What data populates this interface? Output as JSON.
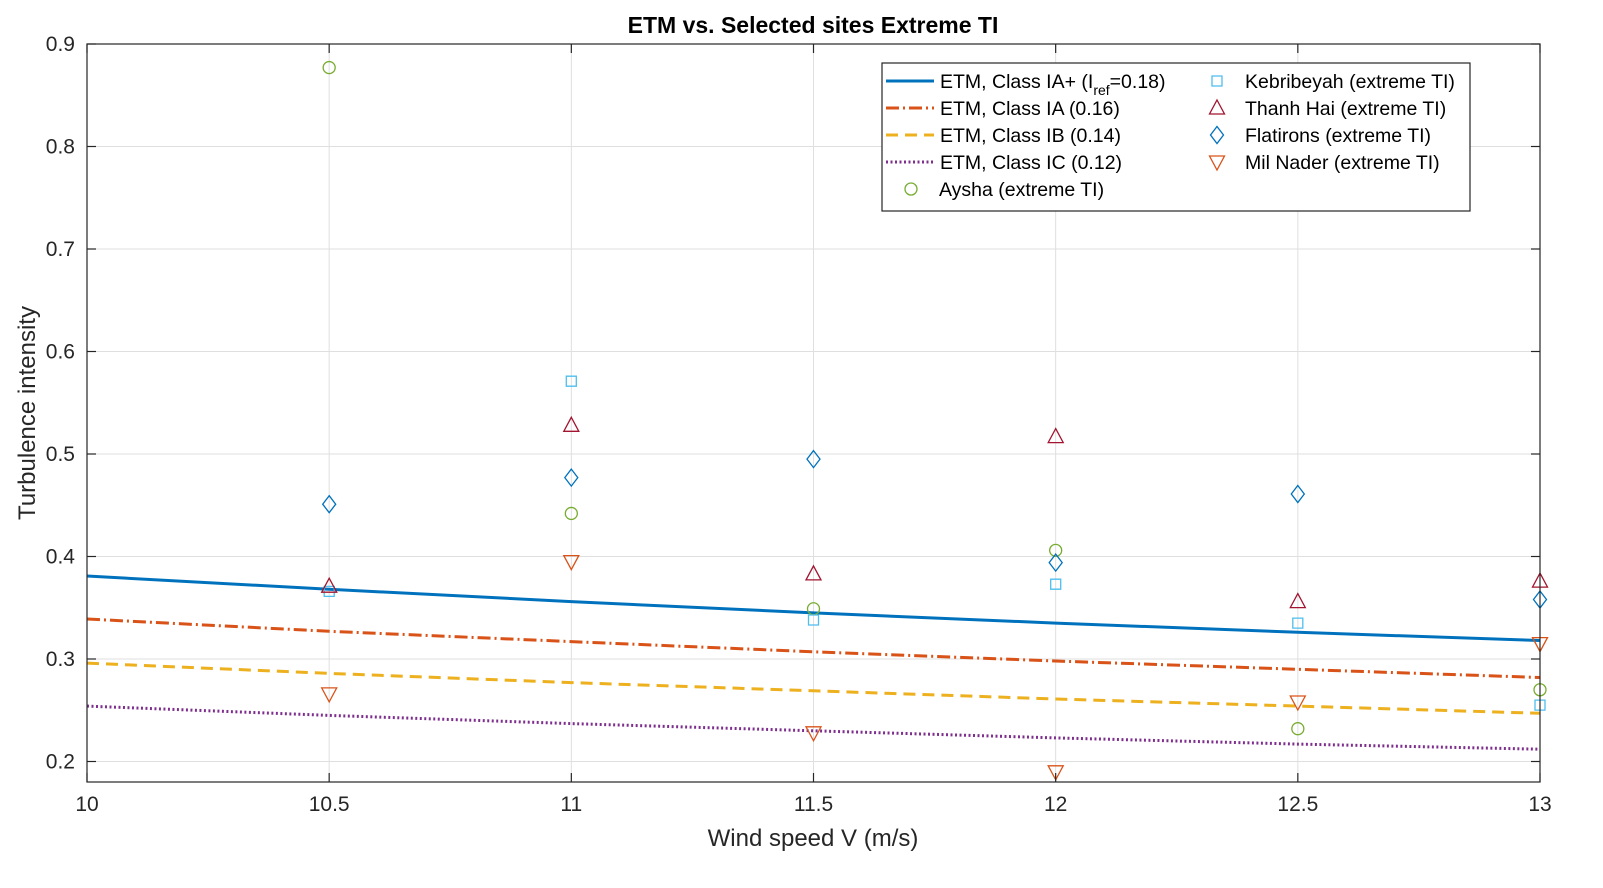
{
  "chart_data": {
    "type": "scatter",
    "title": "ETM vs. Selected sites Extreme TI",
    "xlabel": "Wind speed V (m/s)",
    "ylabel": "Turbulence intensity",
    "xlim": [
      10,
      13
    ],
    "ylim": [
      0.18,
      0.9
    ],
    "xticks": [
      "10",
      "10.5",
      "11",
      "11.5",
      "12",
      "12.5",
      "13"
    ],
    "yticks": [
      "0.2",
      "0.3",
      "0.4",
      "0.5",
      "0.6",
      "0.7",
      "0.8",
      "0.9"
    ],
    "grid": true,
    "legend_position": "top-right",
    "lines": [
      {
        "name": "ETM, Class IA+ (I",
        "name_sub": "ref",
        "name_tail": "=0.18)",
        "color": "#0072BD",
        "style": "solid",
        "x": [
          10,
          10.5,
          11,
          11.5,
          12,
          12.5,
          13
        ],
        "y": [
          0.381,
          0.368,
          0.356,
          0.345,
          0.335,
          0.326,
          0.318
        ]
      },
      {
        "name": "ETM, Class IA (0.16)",
        "color": "#D95319",
        "style": "dashdot",
        "x": [
          10,
          10.5,
          11,
          11.5,
          12,
          12.5,
          13
        ],
        "y": [
          0.339,
          0.327,
          0.317,
          0.307,
          0.298,
          0.29,
          0.282
        ]
      },
      {
        "name": "ETM, Class IB (0.14)",
        "color": "#EDB120",
        "style": "dashed",
        "x": [
          10,
          10.5,
          11,
          11.5,
          12,
          12.5,
          13
        ],
        "y": [
          0.296,
          0.286,
          0.277,
          0.269,
          0.261,
          0.254,
          0.247
        ]
      },
      {
        "name": "ETM, Class IC (0.12)",
        "color": "#7E2F8E",
        "style": "dotted",
        "x": [
          10,
          10.5,
          11,
          11.5,
          12,
          12.5,
          13
        ],
        "y": [
          0.254,
          0.245,
          0.237,
          0.23,
          0.223,
          0.217,
          0.212
        ]
      }
    ],
    "series": [
      {
        "name": "Aysha (extreme TI)",
        "color": "#77AC30",
        "marker": "circle",
        "x": [
          10.5,
          11,
          11.5,
          12,
          12.5,
          13
        ],
        "y": [
          0.877,
          0.442,
          0.349,
          0.406,
          0.232,
          0.27
        ]
      },
      {
        "name": "Kebribeyah (extreme TI)",
        "color": "#4DBEEE",
        "marker": "square",
        "x": [
          10.5,
          11,
          11.5,
          12,
          12.5,
          13
        ],
        "y": [
          0.366,
          0.571,
          0.338,
          0.373,
          0.335,
          0.255
        ]
      },
      {
        "name": "Thanh Hai (extreme TI)",
        "color": "#A2142F",
        "marker": "triangle-up",
        "x": [
          10.5,
          11,
          11.5,
          12,
          12.5,
          13
        ],
        "y": [
          0.371,
          0.528,
          0.383,
          0.517,
          0.356,
          0.376
        ]
      },
      {
        "name": "Flatirons (extreme TI)",
        "color": "#0072BD",
        "marker": "diamond",
        "x": [
          10.5,
          11,
          11.5,
          12,
          12.5,
          13
        ],
        "y": [
          0.451,
          0.477,
          0.495,
          0.394,
          0.461,
          0.358
        ]
      },
      {
        "name": "Mil Nader (extreme TI)",
        "color": "#D95319",
        "marker": "triangle-down",
        "x": [
          10.5,
          11,
          11.5,
          12,
          12.5,
          13
        ],
        "y": [
          0.266,
          0.395,
          0.228,
          0.19,
          0.258,
          0.315
        ]
      }
    ]
  }
}
